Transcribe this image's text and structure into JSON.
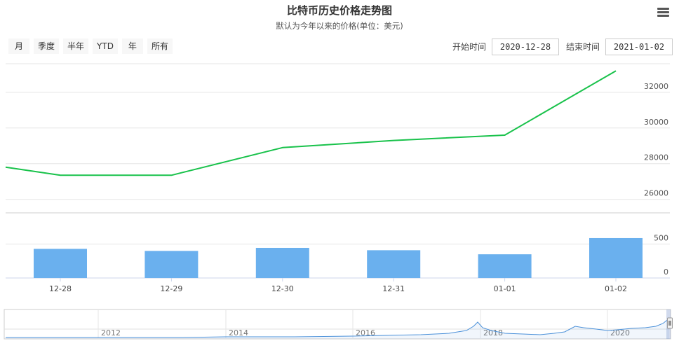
{
  "header": {
    "title": "比特币历史价格走势图",
    "subtitle": "默认为今年以来的价格(单位：美元)"
  },
  "range_selector": {
    "buttons": [
      "月",
      "季度",
      "半年",
      "YTD",
      "年",
      "所有"
    ],
    "start_label": "开始时间",
    "start_value": "2020-12-28",
    "end_label": "结束时间",
    "end_value": "2021-01-02"
  },
  "colors": {
    "line": "#19c24b",
    "bars": "#6ab0ee",
    "navigator_line": "#4a90d9"
  },
  "chart_data": {
    "type": "line",
    "categories": [
      "12-28",
      "12-29",
      "12-30",
      "12-31",
      "01-01",
      "01-02"
    ],
    "price_axis": {
      "ticks": [
        26000,
        28000,
        30000,
        32000
      ],
      "ylim": [
        25400,
        33600
      ]
    },
    "series": [
      {
        "values": [
          27350,
          27350,
          28900,
          29300,
          29600,
          33200
        ],
        "left_value": 27800
      }
    ],
    "volume": {
      "type": "bar",
      "ticks": [
        0,
        500
      ],
      "ylim": [
        0,
        900
      ],
      "values": [
        430,
        400,
        445,
        410,
        350,
        590
      ]
    },
    "navigator": {
      "labels": [
        "2012",
        "2014",
        "2016",
        "2018",
        "2020"
      ],
      "grid": true
    },
    "grid": true
  }
}
